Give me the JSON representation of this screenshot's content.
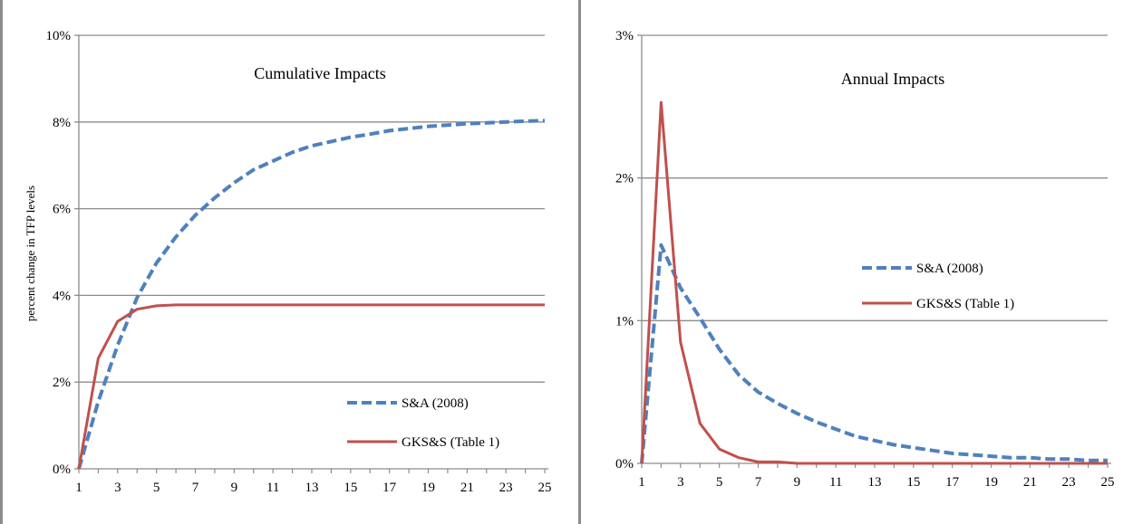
{
  "chart_data": [
    {
      "type": "line",
      "title": "Cumulative Impacts",
      "ylabel": "percent change in TFP levels",
      "xlabel": "",
      "x": [
        1,
        2,
        3,
        4,
        5,
        6,
        7,
        8,
        9,
        10,
        11,
        12,
        13,
        14,
        15,
        16,
        17,
        18,
        19,
        20,
        21,
        22,
        23,
        24,
        25
      ],
      "x_tick_labels": [
        "1",
        "3",
        "5",
        "7",
        "9",
        "11",
        "13",
        "15",
        "17",
        "19",
        "21",
        "23",
        "25"
      ],
      "y_tick_labels": [
        "0%",
        "2%",
        "4%",
        "6%",
        "8%",
        "10%"
      ],
      "ylim": [
        0,
        10
      ],
      "grid": "horizontal",
      "legend_placement": "bottom-right",
      "series": [
        {
          "name": "S&A (2008)",
          "color": "#4f81bd",
          "style": "dashed",
          "values": [
            0.0,
            1.55,
            2.85,
            3.95,
            4.75,
            5.35,
            5.85,
            6.25,
            6.6,
            6.9,
            7.1,
            7.3,
            7.45,
            7.55,
            7.65,
            7.72,
            7.8,
            7.85,
            7.9,
            7.93,
            7.96,
            7.98,
            8.0,
            8.02,
            8.03
          ]
        },
        {
          "name": "GKS&S (Table 1)",
          "color": "#c0504d",
          "style": "solid",
          "values": [
            0.0,
            2.55,
            3.4,
            3.68,
            3.76,
            3.78,
            3.78,
            3.78,
            3.78,
            3.78,
            3.78,
            3.78,
            3.78,
            3.78,
            3.78,
            3.78,
            3.78,
            3.78,
            3.78,
            3.78,
            3.78,
            3.78,
            3.78,
            3.78,
            3.78
          ]
        }
      ]
    },
    {
      "type": "line",
      "title": "Annual Impacts",
      "xlabel": "",
      "ylabel": "",
      "x": [
        1,
        2,
        3,
        4,
        5,
        6,
        7,
        8,
        9,
        10,
        11,
        12,
        13,
        14,
        15,
        16,
        17,
        18,
        19,
        20,
        21,
        22,
        23,
        24,
        25
      ],
      "x_tick_labels": [
        "1",
        "3",
        "5",
        "7",
        "9",
        "11",
        "13",
        "15",
        "17",
        "19",
        "21",
        "23",
        "25"
      ],
      "y_tick_labels": [
        "0%",
        "1%",
        "2%",
        "3%"
      ],
      "ylim": [
        0,
        3
      ],
      "grid": "horizontal",
      "legend_placement": "center-right",
      "series": [
        {
          "name": "S&A (2008)",
          "color": "#4f81bd",
          "style": "dashed",
          "values": [
            0.0,
            1.53,
            1.23,
            1.02,
            0.8,
            0.62,
            0.5,
            0.42,
            0.35,
            0.29,
            0.24,
            0.19,
            0.16,
            0.13,
            0.11,
            0.09,
            0.07,
            0.06,
            0.05,
            0.04,
            0.04,
            0.03,
            0.03,
            0.02,
            0.02
          ]
        },
        {
          "name": "GKS&S (Table 1)",
          "color": "#c0504d",
          "style": "solid",
          "values": [
            0.0,
            2.53,
            0.85,
            0.28,
            0.1,
            0.04,
            0.01,
            0.01,
            0.0,
            0.0,
            0.0,
            0.0,
            0.0,
            0.0,
            0.0,
            0.0,
            0.0,
            0.0,
            0.0,
            0.0,
            0.0,
            0.0,
            0.0,
            0.0,
            0.0
          ]
        }
      ]
    }
  ]
}
